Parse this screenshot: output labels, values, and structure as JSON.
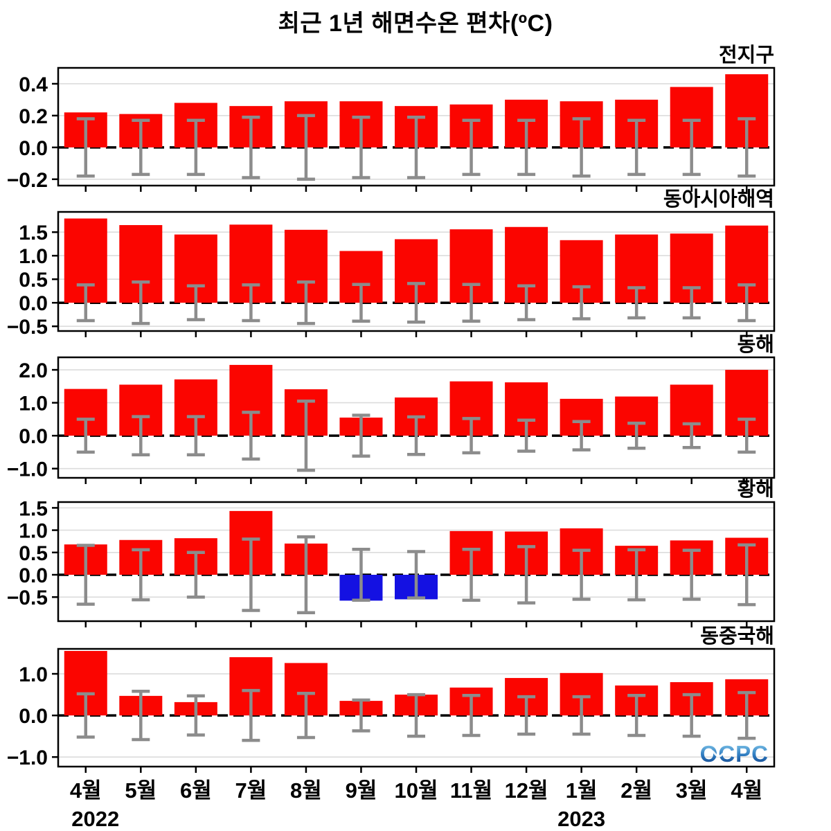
{
  "title": "최근 1년 해면수온 편차(ºC)",
  "x_axis": {
    "months": [
      "4월",
      "5월",
      "6월",
      "7월",
      "8월",
      "9월",
      "10월",
      "11월",
      "12월",
      "1월",
      "2월",
      "3월",
      "4월"
    ],
    "year_left": "2022",
    "year_left_month_index": 0,
    "year_right": "2023",
    "year_right_month_index": 9
  },
  "logo": {
    "text": "OCPC"
  },
  "colors": {
    "positive_bar": "#fb0500",
    "negative_bar": "#1411e2",
    "error_bar": "#8c8c8c",
    "gridline": "#dcdcdc",
    "zero_line": "#000000",
    "panel_border": "#000000",
    "logo_light": "#8ed2f0",
    "logo_mid": "#2e7bc0",
    "logo_dark": "#0d3d85"
  },
  "chart_data": [
    {
      "type": "bar",
      "title": "전지구",
      "categories": [
        "4월",
        "5월",
        "6월",
        "7월",
        "8월",
        "9월",
        "10월",
        "11월",
        "12월",
        "1월",
        "2월",
        "3월",
        "4월"
      ],
      "values": [
        0.22,
        0.21,
        0.28,
        0.26,
        0.29,
        0.29,
        0.26,
        0.27,
        0.3,
        0.29,
        0.3,
        0.38,
        0.46
      ],
      "error": [
        0.18,
        0.17,
        0.17,
        0.19,
        0.2,
        0.19,
        0.19,
        0.17,
        0.17,
        0.18,
        0.17,
        0.17,
        0.18
      ],
      "ytick_labels": [
        "0.4",
        "0.2",
        "0.0",
        "−0.2"
      ],
      "yticks": [
        0.4,
        0.2,
        0.0,
        -0.2
      ],
      "ylim": [
        -0.24,
        0.5
      ],
      "grid": true
    },
    {
      "type": "bar",
      "title": "동아시아해역",
      "categories": [
        "4월",
        "5월",
        "6월",
        "7월",
        "8월",
        "9월",
        "10월",
        "11월",
        "12월",
        "1월",
        "2월",
        "3월",
        "4월"
      ],
      "values": [
        1.79,
        1.65,
        1.45,
        1.66,
        1.55,
        1.1,
        1.35,
        1.56,
        1.61,
        1.33,
        1.45,
        1.47,
        1.64
      ],
      "error": [
        0.38,
        0.44,
        0.36,
        0.38,
        0.44,
        0.39,
        0.41,
        0.39,
        0.36,
        0.34,
        0.32,
        0.32,
        0.38
      ],
      "ytick_labels": [
        "1.5",
        "1.0",
        "0.5",
        "0.0",
        "−0.5"
      ],
      "yticks": [
        1.5,
        1.0,
        0.5,
        0.0,
        -0.5
      ],
      "ylim": [
        -0.6,
        1.93
      ],
      "grid": true
    },
    {
      "type": "bar",
      "title": "동해",
      "categories": [
        "4월",
        "5월",
        "6월",
        "7월",
        "8월",
        "9월",
        "10월",
        "11월",
        "12월",
        "1월",
        "2월",
        "3월",
        "4월"
      ],
      "values": [
        1.42,
        1.55,
        1.71,
        2.15,
        1.41,
        0.55,
        1.16,
        1.65,
        1.62,
        1.12,
        1.19,
        1.55,
        2.0
      ],
      "error": [
        0.5,
        0.58,
        0.58,
        0.71,
        1.05,
        0.62,
        0.57,
        0.52,
        0.47,
        0.43,
        0.38,
        0.36,
        0.5
      ],
      "ytick_labels": [
        "2.0",
        "1.0",
        "0.0",
        "−1.0"
      ],
      "yticks": [
        2.0,
        1.0,
        0.0,
        -1.0
      ],
      "ylim": [
        -1.28,
        2.38
      ],
      "grid": true
    },
    {
      "type": "bar",
      "title": "황해",
      "categories": [
        "4월",
        "5월",
        "6월",
        "7월",
        "8월",
        "9월",
        "10월",
        "11월",
        "12월",
        "1월",
        "2월",
        "3월",
        "4월"
      ],
      "values": [
        0.68,
        0.78,
        0.82,
        1.43,
        0.7,
        -0.58,
        -0.55,
        0.98,
        0.97,
        1.04,
        0.65,
        0.77,
        0.83
      ],
      "error": [
        0.66,
        0.56,
        0.5,
        0.8,
        0.85,
        0.57,
        0.52,
        0.57,
        0.63,
        0.55,
        0.56,
        0.55,
        0.67
      ],
      "ytick_labels": [
        "1.5",
        "1.0",
        "0.5",
        "0.0",
        "−0.5"
      ],
      "yticks": [
        1.5,
        1.0,
        0.5,
        0.0,
        -0.5
      ],
      "ylim": [
        -1.04,
        1.63
      ],
      "grid": true
    },
    {
      "type": "bar",
      "title": "동중국해",
      "categories": [
        "4월",
        "5월",
        "6월",
        "7월",
        "8월",
        "9월",
        "10월",
        "11월",
        "12월",
        "1월",
        "2월",
        "3월",
        "4월"
      ],
      "values": [
        1.55,
        0.47,
        0.32,
        1.4,
        1.26,
        0.35,
        0.5,
        0.67,
        0.9,
        1.02,
        0.72,
        0.8,
        0.87
      ],
      "error": [
        0.52,
        0.58,
        0.47,
        0.6,
        0.53,
        0.37,
        0.5,
        0.48,
        0.45,
        0.45,
        0.48,
        0.5,
        0.55
      ],
      "ytick_labels": [
        "1.0",
        "0.0",
        "−1.0"
      ],
      "yticks": [
        1.0,
        0.0,
        -1.0
      ],
      "ylim": [
        -1.23,
        1.6
      ],
      "grid": true
    }
  ]
}
